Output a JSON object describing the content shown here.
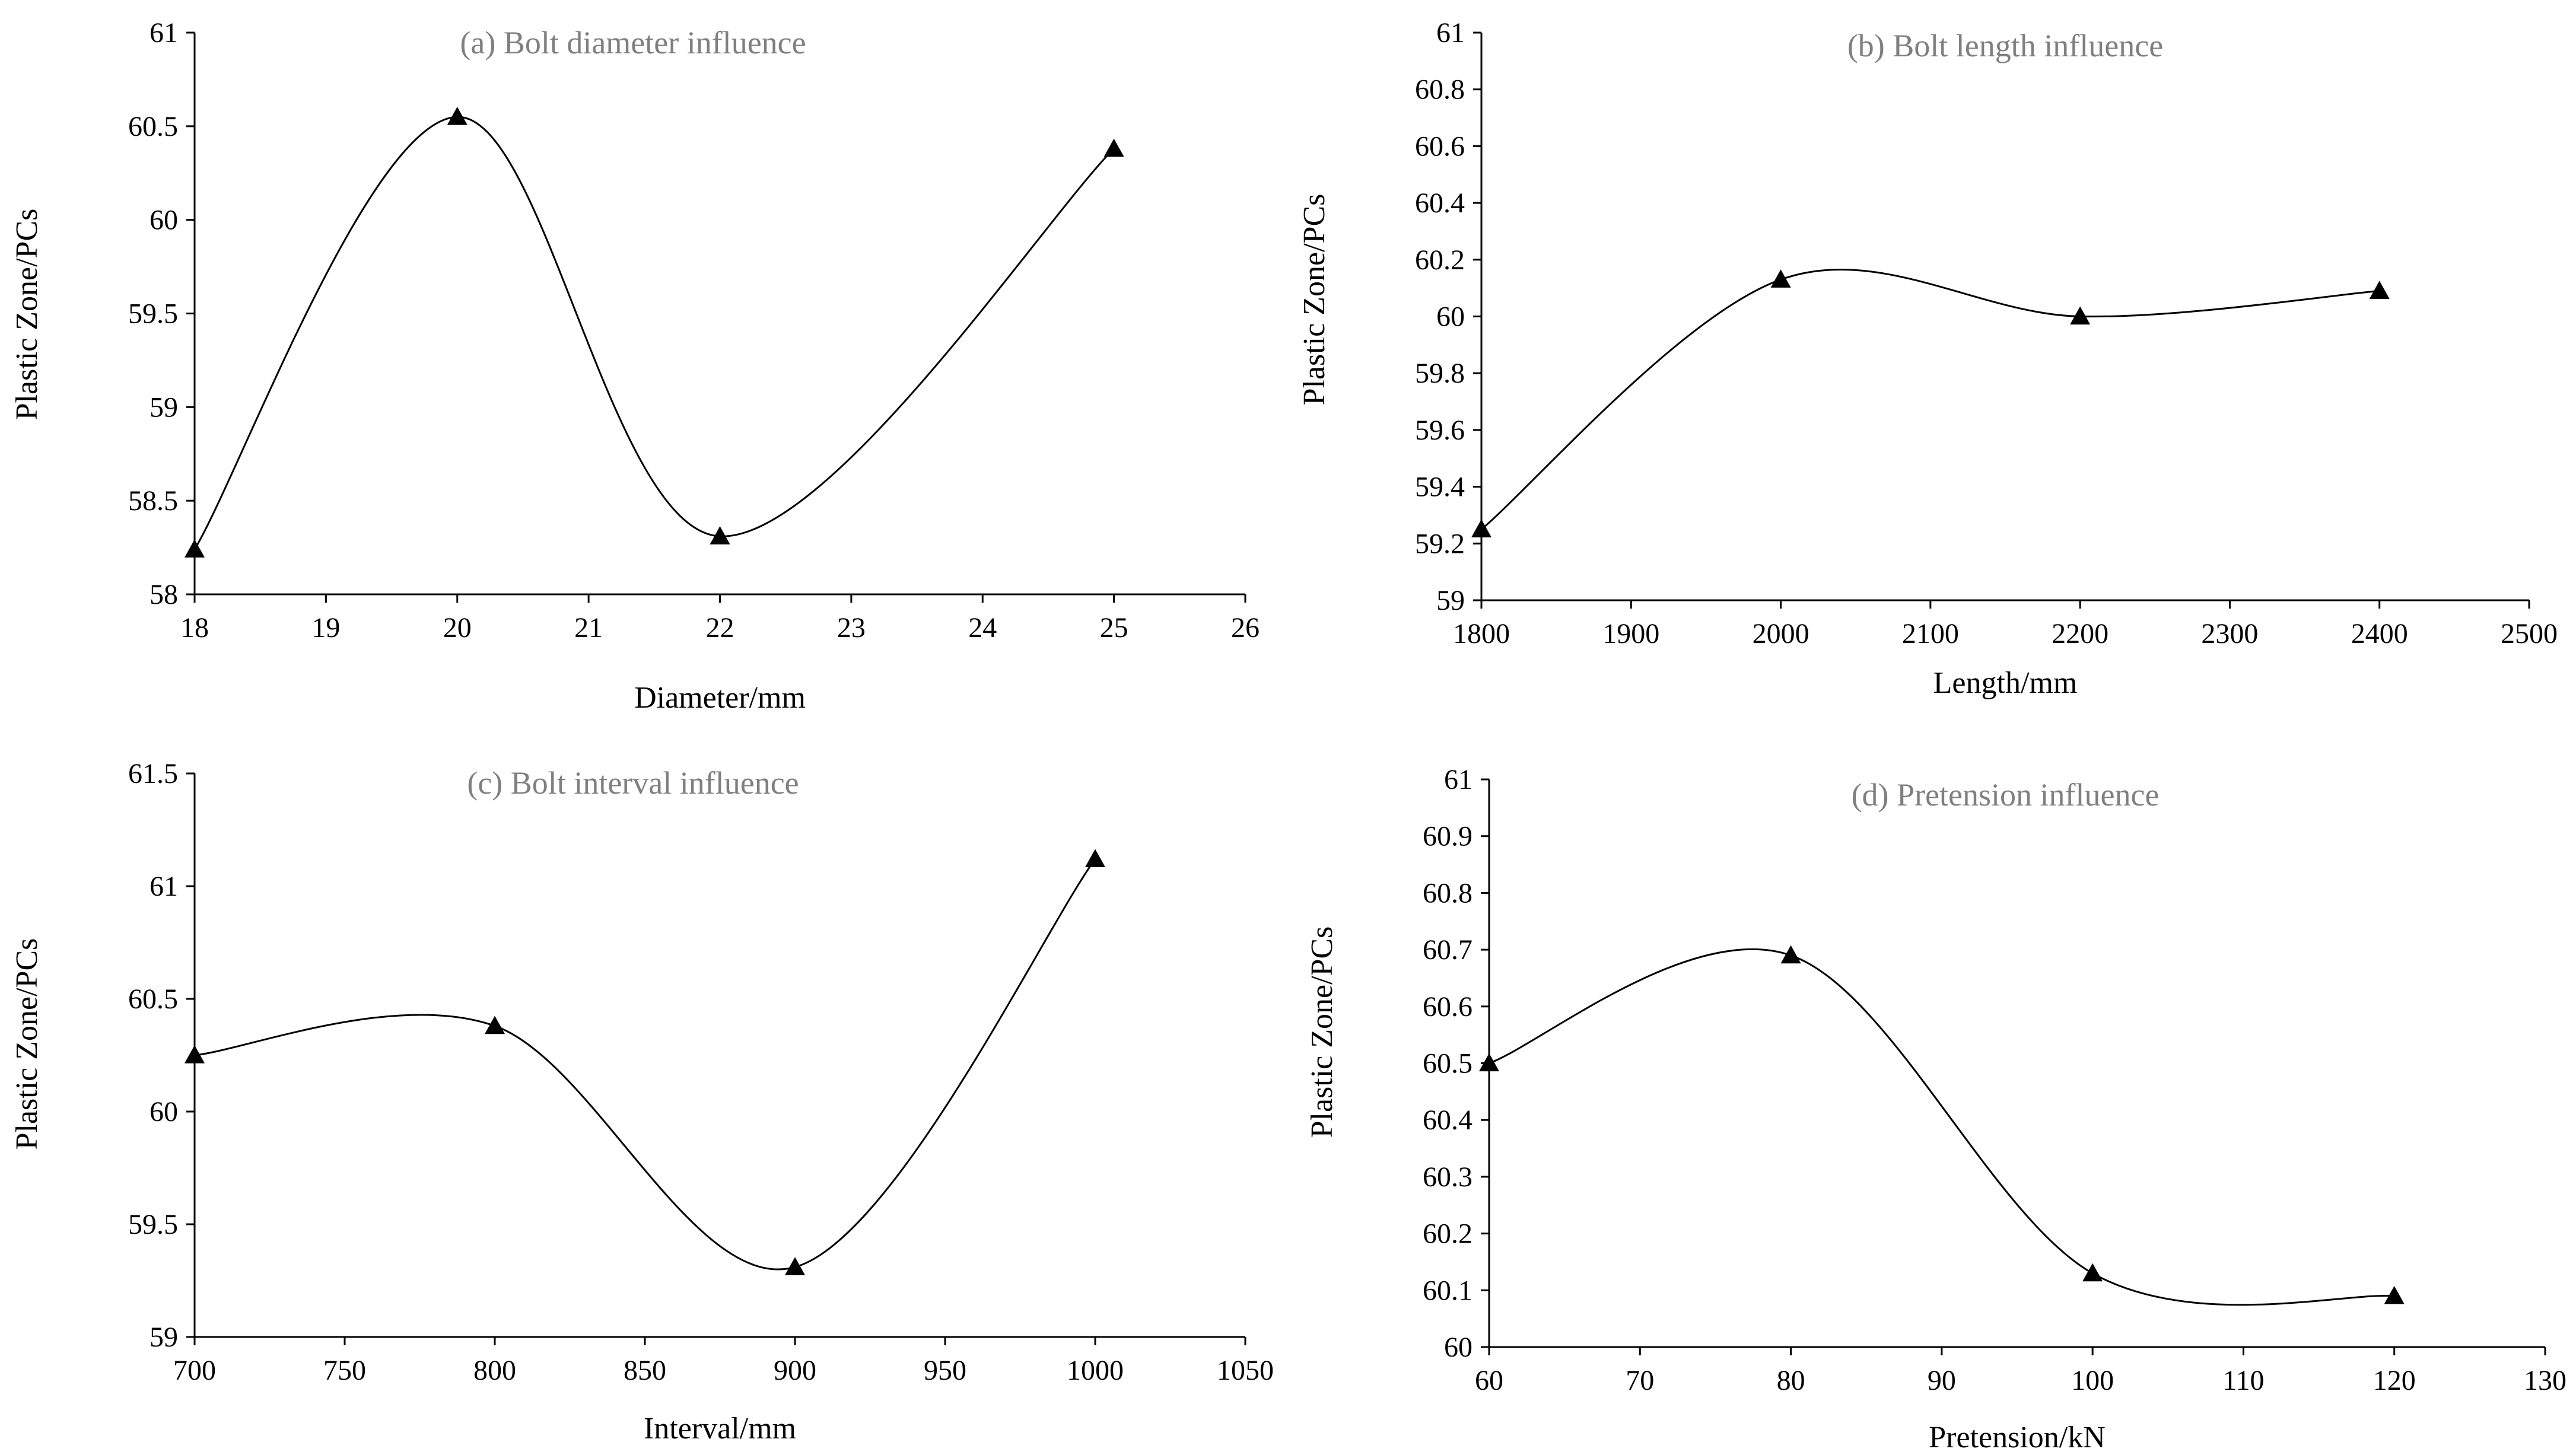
{
  "chart_data": [
    {
      "type": "line",
      "title": "(a) Bolt diameter influence",
      "xlabel": "Diameter/mm",
      "ylabel": "Plastic Zone/PCs",
      "x": [
        18,
        20,
        22,
        25
      ],
      "y": [
        58.24,
        60.55,
        58.31,
        60.38
      ],
      "xlim": [
        18,
        26
      ],
      "ylim": [
        58,
        61
      ],
      "xticks": [
        18,
        19,
        20,
        21,
        22,
        23,
        24,
        25,
        26
      ],
      "yticks": [
        58,
        58.5,
        59,
        59.5,
        60,
        60.5,
        61
      ],
      "xtick_labels": [
        "18",
        "19",
        "20",
        "21",
        "22",
        "23",
        "24",
        "25",
        "26"
      ],
      "ytick_labels": [
        "58",
        "58.5",
        "59",
        "59.5",
        "60",
        "60.5",
        "61"
      ],
      "grid": false,
      "smooth": true,
      "marker": "triangle",
      "color": "#000000"
    },
    {
      "type": "line",
      "title": "(b) Bolt length influence",
      "xlabel": "Length/mm",
      "ylabel": "Plastic Zone/PCs",
      "x": [
        1800,
        2000,
        2200,
        2400
      ],
      "y": [
        59.25,
        60.13,
        60.0,
        60.09
      ],
      "xlim": [
        1800,
        2500
      ],
      "ylim": [
        59,
        61
      ],
      "xticks": [
        1800,
        1900,
        2000,
        2100,
        2200,
        2300,
        2400,
        2500
      ],
      "yticks": [
        59,
        59.2,
        59.4,
        59.6,
        59.8,
        60,
        60.2,
        60.4,
        60.6,
        60.8,
        61
      ],
      "xtick_labels": [
        "1800",
        "1900",
        "2000",
        "2100",
        "2200",
        "2300",
        "2400",
        "2500"
      ],
      "ytick_labels": [
        "59",
        "59.2",
        "59.4",
        "59.6",
        "59.8",
        "60",
        "60.2",
        "60.4",
        "60.6",
        "60.8",
        "61"
      ],
      "grid": false,
      "smooth": true,
      "marker": "triangle",
      "color": "#000000"
    },
    {
      "type": "line",
      "title": "(c) Bolt interval influence",
      "xlabel": "Interval/mm",
      "ylabel": "Plastic Zone/PCs",
      "x": [
        700,
        800,
        900,
        1000
      ],
      "y": [
        60.25,
        60.38,
        59.31,
        61.12
      ],
      "xlim": [
        700,
        1050
      ],
      "ylim": [
        59,
        61.5
      ],
      "xticks": [
        700,
        750,
        800,
        850,
        900,
        950,
        1000,
        1050
      ],
      "yticks": [
        59,
        59.5,
        60,
        60.5,
        61,
        61.5
      ],
      "xtick_labels": [
        "700",
        "750",
        "800",
        "850",
        "900",
        "950",
        "1000",
        "1050"
      ],
      "ytick_labels": [
        "59",
        "59.5",
        "60",
        "60.5",
        "61",
        "61.5"
      ],
      "grid": false,
      "smooth": true,
      "marker": "triangle",
      "color": "#000000"
    },
    {
      "type": "line",
      "title": "(d) Pretension influence",
      "xlabel": "Pretension/kN",
      "ylabel": "Plastic Zone/PCs",
      "x": [
        60,
        80,
        100,
        120
      ],
      "y": [
        60.5,
        60.69,
        60.13,
        60.09
      ],
      "xlim": [
        60,
        130
      ],
      "ylim": [
        60,
        61
      ],
      "xticks": [
        60,
        70,
        80,
        90,
        100,
        110,
        120,
        130
      ],
      "yticks": [
        60,
        60.1,
        60.2,
        60.3,
        60.4,
        60.5,
        60.6,
        60.7,
        60.8,
        60.9,
        61
      ],
      "xtick_labels": [
        "60",
        "70",
        "80",
        "90",
        "100",
        "110",
        "120",
        "130"
      ],
      "ytick_labels": [
        "60",
        "60.1",
        "60.2",
        "60.3",
        "60.4",
        "60.5",
        "60.6",
        "60.7",
        "60.8",
        "60.9",
        "61"
      ],
      "grid": false,
      "smooth": true,
      "marker": "triangle",
      "color": "#000000"
    }
  ]
}
